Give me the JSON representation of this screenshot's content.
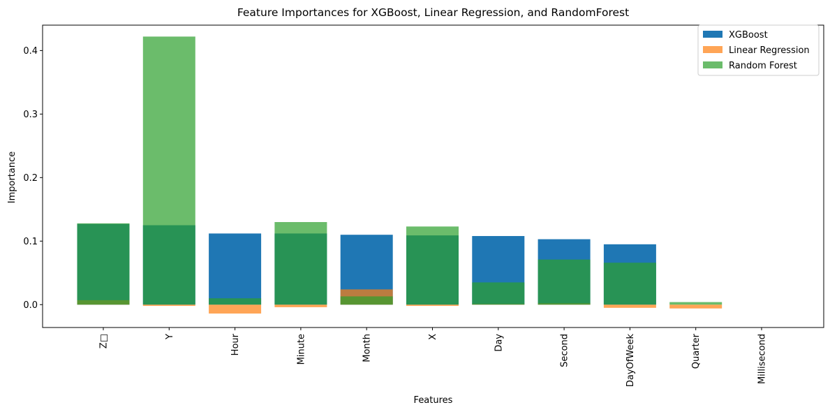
{
  "chart_data": {
    "type": "bar",
    "title": "Feature Importances for XGBoost, Linear Regression, and RandomForest",
    "xlabel": "Features",
    "ylabel": "Importance",
    "ylim": [
      -0.036,
      0.44
    ],
    "yticks": [
      0.0,
      0.1,
      0.2,
      0.3,
      0.4
    ],
    "ytick_labels": [
      "0.0",
      "0.1",
      "0.2",
      "0.3",
      "0.4"
    ],
    "categories": [
      "Z□",
      "Y",
      "Hour",
      "Minute",
      "Month",
      "X",
      "Day",
      "Second",
      "DayOfWeek",
      "Quarter",
      "Millisecond"
    ],
    "grid": false,
    "legend_position": "top-right",
    "series": [
      {
        "name": "XGBoost",
        "color": "#1f77b4",
        "opacity": 1.0,
        "values": [
          0.127,
          0.125,
          0.112,
          0.112,
          0.11,
          0.109,
          0.108,
          0.103,
          0.095,
          0.0,
          0.0
        ]
      },
      {
        "name": "Linear Regression",
        "color": "#ff7f0e",
        "opacity": 0.7,
        "values": [
          0.007,
          -0.002,
          -0.014,
          -0.004,
          0.024,
          -0.002,
          0.001,
          0.002,
          -0.005,
          -0.006,
          0.0
        ]
      },
      {
        "name": "Random Forest",
        "color": "#2ca02c",
        "opacity": 0.7,
        "values": [
          0.128,
          0.422,
          0.01,
          0.13,
          0.013,
          0.123,
          0.035,
          0.071,
          0.066,
          0.004,
          0.0
        ]
      }
    ]
  }
}
